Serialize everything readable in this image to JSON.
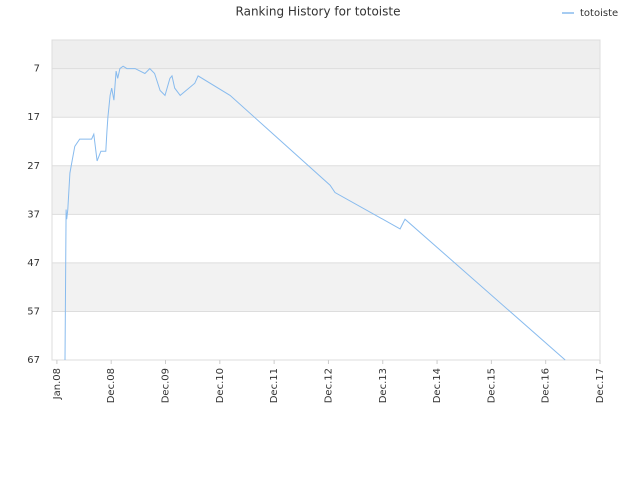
{
  "chart_data": {
    "type": "line",
    "title": "Ranking History for totoiste",
    "x": [
      0.15,
      0.17,
      0.18,
      0.2,
      0.24,
      0.28,
      0.33,
      0.42,
      0.64,
      0.68,
      0.74,
      0.81,
      0.9,
      0.92,
      0.94,
      0.98,
      1.01,
      1.05,
      1.09,
      1.12,
      1.16,
      1.22,
      1.29,
      1.44,
      1.62,
      1.71,
      1.8,
      1.9,
      1.99,
      2.08,
      2.12,
      2.17,
      2.27,
      2.54,
      2.6,
      3.19,
      5.03,
      5.12,
      6.32,
      6.41,
      9.36
    ],
    "series": [
      {
        "name": "totoiste",
        "color": "#88bbee",
        "values": [
          67,
          36,
          38,
          36,
          28.5,
          26,
          23,
          21.5,
          21.5,
          20.5,
          26,
          24,
          24,
          20,
          17,
          12.5,
          11,
          13.5,
          7.5,
          9,
          7,
          6.5,
          7,
          7,
          8,
          7,
          8,
          11.5,
          12.5,
          9,
          8.5,
          11,
          12.5,
          10,
          8.5,
          12.5,
          31,
          32.5,
          40,
          38,
          67
        ]
      }
    ],
    "xlim": [
      -0.09,
      10
    ],
    "xticks": [
      {
        "value": 0,
        "label": "Jan.08"
      },
      {
        "value": 1,
        "label": "Dec.08"
      },
      {
        "value": 2,
        "label": "Dec.09"
      },
      {
        "value": 3,
        "label": "Dec.10"
      },
      {
        "value": 4,
        "label": "Dec.11"
      },
      {
        "value": 5,
        "label": "Dec.12"
      },
      {
        "value": 6,
        "label": "Dec.13"
      },
      {
        "value": 7,
        "label": "Dec.14"
      },
      {
        "value": 8,
        "label": "Dec.15"
      },
      {
        "value": 9,
        "label": "Dec.16"
      },
      {
        "value": 10,
        "label": "Dec.17"
      }
    ],
    "ylim": [
      67,
      1.1
    ],
    "yticks": [
      7,
      17,
      27,
      37,
      47,
      57,
      67
    ],
    "legend": "top-right"
  }
}
